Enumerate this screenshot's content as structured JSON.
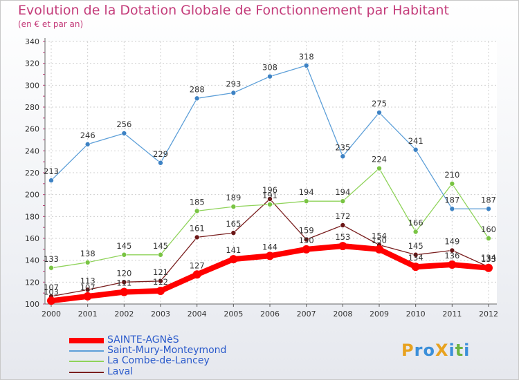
{
  "title": "Evolution de la Dotation Globale de Fonctionnement par Habitant",
  "subtitle": "(en € et par an)",
  "logo": {
    "text": "ProXiti",
    "letter_colors": [
      "#e8a21f",
      "#3b8fd9",
      "#3b8fd9",
      "#e8a21f",
      "#3b8fd9",
      "#6db33f",
      "#3b8fd9"
    ]
  },
  "chart_data": {
    "type": "line",
    "title": "Evolution de la Dotation Globale de Fonctionnement par Habitant",
    "subtitle": "(en € et par an)",
    "x": [
      "2000",
      "2001",
      "2002",
      "2003",
      "2004",
      "2005",
      "2006",
      "2007",
      "2008",
      "2009",
      "2010",
      "2011",
      "2012"
    ],
    "ylim": [
      100,
      340
    ],
    "yticks": [
      100,
      120,
      140,
      160,
      180,
      200,
      220,
      240,
      260,
      280,
      300,
      320,
      340
    ],
    "grid": true,
    "legend_position": "bottom-left",
    "series": [
      {
        "name": "SAINTE-AGNèS",
        "color": "#ff0000",
        "marker_color": "#ff0000",
        "thick": true,
        "values": [
          103,
          107,
          111,
          112,
          127,
          141,
          144,
          150,
          153,
          150,
          134,
          136,
          133
        ],
        "labels": [
          "103",
          "107",
          "111",
          "112",
          "127",
          "141",
          "144",
          "150",
          "153",
          "150",
          "134",
          "136",
          "133"
        ]
      },
      {
        "name": "Saint-Mury-Monteymond",
        "color": "#5d9fd8",
        "marker_color": "#3d82c4",
        "thick": false,
        "values": [
          213,
          246,
          256,
          229,
          288,
          293,
          308,
          318,
          235,
          275,
          241,
          187,
          187
        ],
        "labels": [
          "213",
          "246",
          "256",
          "229",
          "288",
          "293",
          "308",
          "318",
          "235",
          "275",
          "241",
          "187",
          "187"
        ]
      },
      {
        "name": "La Combe-de-Lancey",
        "color": "#8fd35a",
        "marker_color": "#79c443",
        "thick": false,
        "values": [
          133,
          138,
          145,
          145,
          185,
          189,
          191,
          194,
          194,
          224,
          166,
          210,
          160
        ],
        "labels": [
          "133",
          "138",
          "145",
          "145",
          "185",
          "189",
          "191",
          "194",
          "194",
          "224",
          "166",
          "210",
          "160"
        ]
      },
      {
        "name": "Laval",
        "color": "#7a1f1f",
        "marker_color": "#6b1616",
        "thick": false,
        "values": [
          107,
          113,
          120,
          121,
          161,
          165,
          196,
          159,
          172,
          154,
          145,
          149,
          134
        ],
        "labels": [
          "107",
          "113",
          "120",
          "121",
          "161",
          "165",
          "196",
          "159",
          "172",
          "154",
          "145",
          "149",
          "134"
        ]
      }
    ]
  }
}
